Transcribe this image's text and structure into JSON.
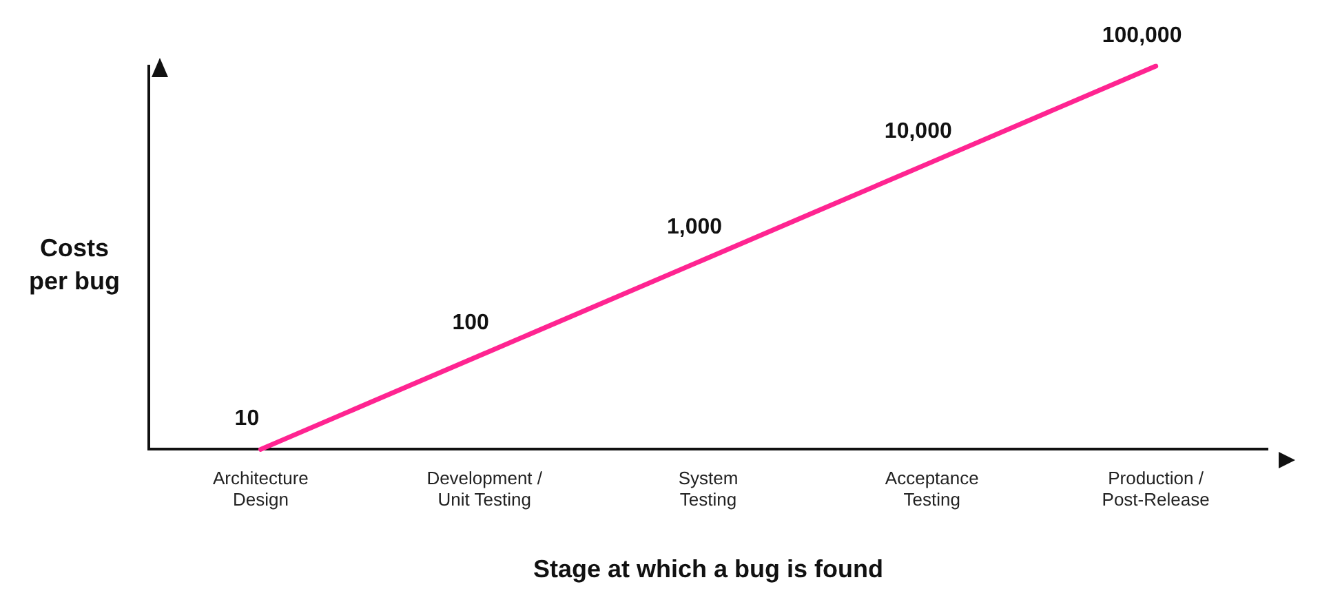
{
  "chart_data": {
    "type": "line",
    "xlabel": "Stage at which a bug is found",
    "ylabel": "Costs per bug",
    "categories": [
      "Architecture Design",
      "Development / Unit Testing",
      "System Testing",
      "Acceptance Testing",
      "Production / Post-Release"
    ],
    "series": [
      {
        "color": "#ff2491",
        "values": [
          10,
          100,
          1000,
          10000,
          100000
        ],
        "value_labels": [
          "10",
          "100",
          "1,000",
          "10,000",
          "100,000"
        ]
      }
    ],
    "log": "y",
    "grid": false,
    "legend": false,
    "tick_labels": "x",
    "marker": "none",
    "line_style": "solid"
  }
}
